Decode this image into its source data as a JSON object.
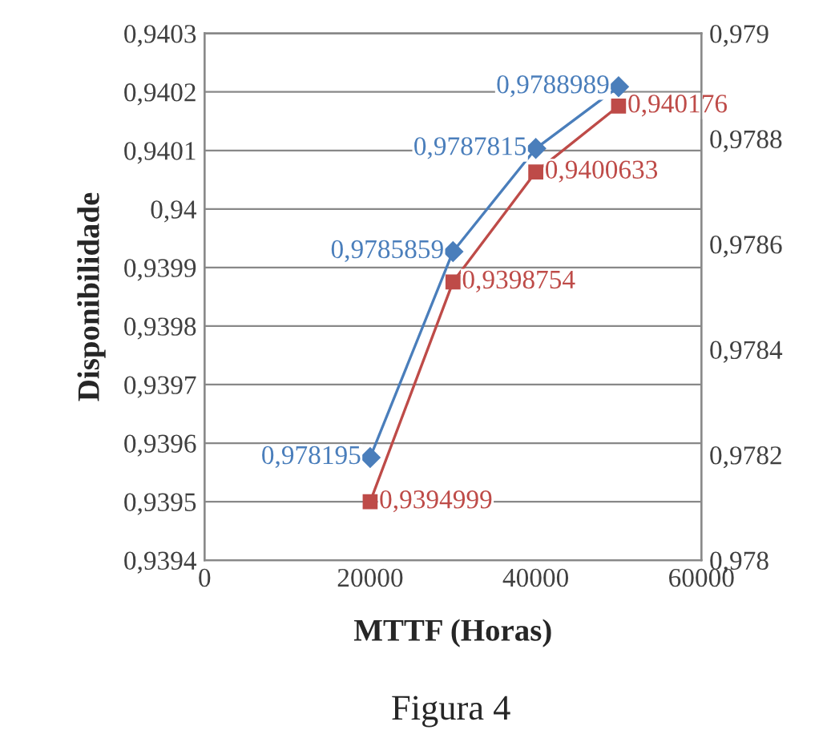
{
  "chart_data": {
    "type": "line",
    "xlabel": "MTTF (Horas)",
    "ylabel": "Disponibilidade",
    "annotations": [
      "Figura 4"
    ],
    "x": [
      20000,
      30000,
      40000,
      50000
    ],
    "xlim": [
      0,
      60000
    ],
    "xticks": [
      0,
      20000,
      40000,
      60000
    ],
    "ylim": [
      0.9394,
      0.9403
    ],
    "yticks": [
      {
        "value": 0.9394,
        "label": "0,9394"
      },
      {
        "value": 0.9395,
        "label": "0,9395"
      },
      {
        "value": 0.9396,
        "label": "0,9396"
      },
      {
        "value": 0.9397,
        "label": "0,9397"
      },
      {
        "value": 0.9398,
        "label": "0,9398"
      },
      {
        "value": 0.9399,
        "label": "0,9399"
      },
      {
        "value": 0.94,
        "label": "0,94"
      },
      {
        "value": 0.9401,
        "label": "0,9401"
      },
      {
        "value": 0.9402,
        "label": "0,9402"
      },
      {
        "value": 0.9403,
        "label": "0,9403"
      }
    ],
    "y2lim": [
      0.978,
      0.979
    ],
    "y2ticks": [
      {
        "value": 0.978,
        "label": "0,978"
      },
      {
        "value": 0.9782,
        "label": "0,9782"
      },
      {
        "value": 0.9784,
        "label": "0,9784"
      },
      {
        "value": 0.9786,
        "label": "0,9786"
      },
      {
        "value": 0.9788,
        "label": "0,9788"
      },
      {
        "value": 0.979,
        "label": "0,979"
      }
    ],
    "grid": "y",
    "line_style": "solid",
    "series": [
      {
        "color": "#4a7ebb",
        "axis": "y2",
        "marker": "diamond",
        "values": [
          0.978195,
          0.9785859,
          0.9787815,
          0.9788989
        ],
        "value_labels": [
          "0,978195",
          "0,9785859",
          "0,9787815",
          "0,9788989"
        ]
      },
      {
        "color": "#be4b48",
        "axis": "y",
        "marker": "square",
        "values": [
          0.9394999,
          0.9398754,
          0.9400633,
          0.940176
        ],
        "value_labels": [
          "0,9394999",
          "0,9398754",
          "0,9400633",
          "0,940176"
        ]
      }
    ]
  }
}
